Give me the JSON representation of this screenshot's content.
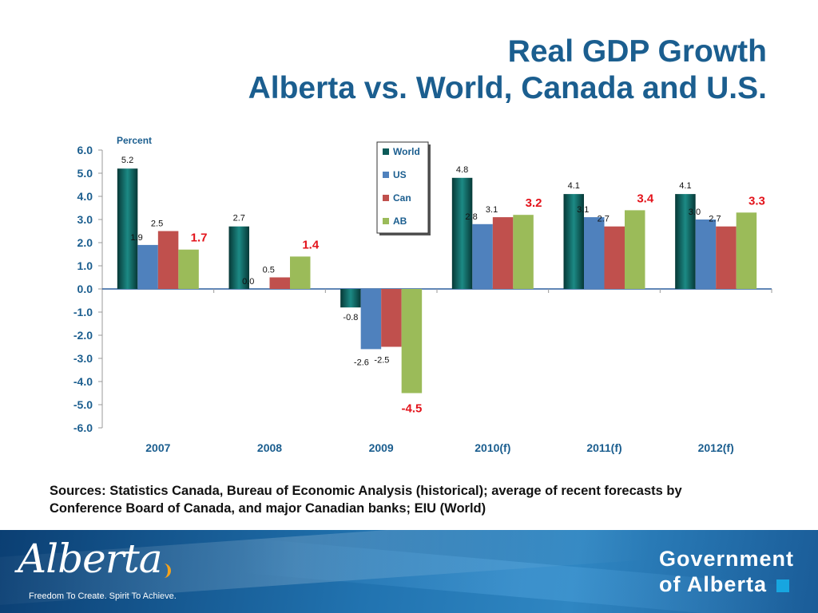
{
  "title": {
    "line1": "Real GDP Growth",
    "line2": "Alberta vs. World, Canada and U.S."
  },
  "chart_data": {
    "type": "bar",
    "ylabel": "Percent",
    "ylim": [
      -6.0,
      6.0
    ],
    "ytick_step": 1.0,
    "yticks": [
      "6.0",
      "5.0",
      "4.0",
      "3.0",
      "2.0",
      "1.0",
      "0.0",
      "-1.0",
      "-2.0",
      "-3.0",
      "-4.0",
      "-5.0",
      "-6.0"
    ],
    "categories": [
      "2007",
      "2008",
      "2009",
      "2010(f)",
      "2011(f)",
      "2012(f)"
    ],
    "series": [
      {
        "name": "World",
        "values": [
          5.2,
          2.7,
          -0.8,
          4.8,
          4.1,
          4.1
        ],
        "labels": [
          "5.2",
          "2.7",
          "-0.8",
          "4.8",
          "4.1",
          "4.1"
        ],
        "color": "#0b5a58"
      },
      {
        "name": "US",
        "values": [
          1.9,
          0.0,
          -2.6,
          2.8,
          3.1,
          3.0
        ],
        "labels": [
          "1.9",
          "0.0",
          "-2.6",
          "2.8",
          "3.1",
          "3.0"
        ],
        "color": "#4f81bd"
      },
      {
        "name": "Can",
        "values": [
          2.5,
          0.5,
          -2.5,
          3.1,
          2.7,
          2.7
        ],
        "labels": [
          "2.5",
          "0.5",
          "-2.5",
          "3.1",
          "2.7",
          "2.7"
        ],
        "color": "#c0504d"
      },
      {
        "name": "AB",
        "values": [
          1.7,
          1.4,
          -4.5,
          3.2,
          3.4,
          3.3
        ],
        "labels": [
          "1.7",
          "1.4",
          "-4.5",
          "3.2",
          "3.4",
          "3.3"
        ],
        "color": "#9bbb59",
        "label_color": "#e3131b"
      }
    ],
    "legend_position": "top-center",
    "grid": false
  },
  "sources": "Sources: Statistics Canada, Bureau of Economic Analysis (historical); average of recent forecasts by Conference Board of Canada, and major Canadian banks; EIU (World)",
  "footer": {
    "logo": "Alberta",
    "tagline": "Freedom To Create. Spirit To Achieve.",
    "government_line1": "Government",
    "government_line2": "of Alberta"
  },
  "colors": {
    "title": "#1b5e8f",
    "axis_text": "#1b5e8f",
    "highlight_label": "#e3131b"
  }
}
